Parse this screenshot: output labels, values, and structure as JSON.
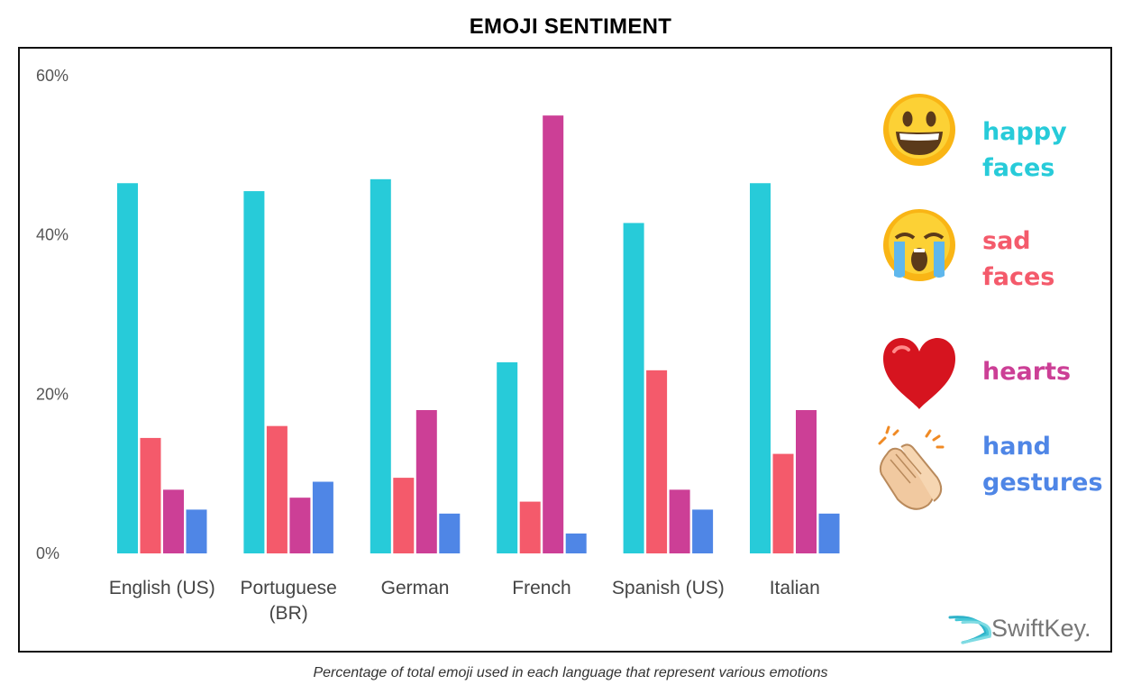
{
  "title": "EMOJI SENTIMENT",
  "caption": "Percentage of total emoji used in each language that represent various emotions",
  "brand": {
    "name": "SwiftKey."
  },
  "legend": [
    {
      "lines": [
        "happy",
        "faces"
      ],
      "color": "#27cbd9",
      "icon": "grinning-face-icon"
    },
    {
      "lines": [
        "sad",
        "faces"
      ],
      "color": "#f45a6b",
      "icon": "crying-face-icon"
    },
    {
      "lines": [
        "hearts"
      ],
      "color": "#cc3f96",
      "icon": "red-heart-icon"
    },
    {
      "lines": [
        "hand",
        "gestures"
      ],
      "color": "#4f86e6",
      "icon": "clapping-hands-icon"
    }
  ],
  "chart_data": {
    "type": "bar",
    "title": "EMOJI SENTIMENT",
    "xlabel": "",
    "ylabel": "",
    "ylim": [
      0,
      60
    ],
    "yticks": [
      "0%",
      "20%",
      "40%",
      "60%"
    ],
    "grid": false,
    "legend_position": "right",
    "categories": [
      [
        "English (US)"
      ],
      [
        "Portuguese",
        "(BR)"
      ],
      [
        "German"
      ],
      [
        "French"
      ],
      [
        "Spanish (US)"
      ],
      [
        "Italian"
      ]
    ],
    "series": [
      {
        "name": "happy faces",
        "color": "#27cbd9",
        "values": [
          46.5,
          45.5,
          47,
          24,
          41.5,
          46.5
        ]
      },
      {
        "name": "sad faces",
        "color": "#f45a6b",
        "values": [
          14.5,
          16,
          9.5,
          6.5,
          23,
          12.5
        ]
      },
      {
        "name": "hearts",
        "color": "#cc3f96",
        "values": [
          8,
          7,
          18,
          55,
          8,
          18
        ]
      },
      {
        "name": "hand gestures",
        "color": "#4f86e6",
        "values": [
          5.5,
          9,
          5,
          2.5,
          5.5,
          5
        ]
      }
    ]
  }
}
